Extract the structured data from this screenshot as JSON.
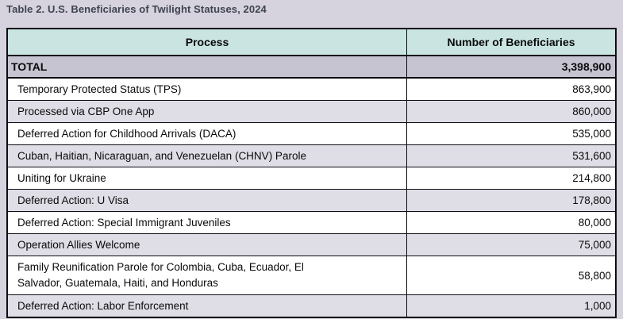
{
  "title": "Table 2. U.S. Beneficiaries of Twilight Statuses, 2024",
  "theme": {
    "page-bg": "#d6d3de",
    "header-bg": "#c9e4e1",
    "total-row-bg": "#c7c4d2",
    "alt-row-bg": "#dfdde6",
    "row-bg": "#ffffff",
    "border-color": "#0d0d12",
    "title-color": "#3e4350",
    "text-color": "#0a0a0a"
  },
  "table": {
    "columns": [
      "Process",
      "Number of Beneficiaries"
    ],
    "total_row": {
      "process": "TOTAL",
      "beneficiaries": "3,398,900"
    },
    "rows": [
      {
        "process": "Temporary Protected Status (TPS)",
        "beneficiaries": "863,900"
      },
      {
        "process": "Processed via CBP One App",
        "beneficiaries": "860,000"
      },
      {
        "process": "Deferred Action for Childhood Arrivals (DACA)",
        "beneficiaries": "535,000"
      },
      {
        "process": "Cuban, Haitian, Nicaraguan, and Venezuelan (CHNV) Parole",
        "beneficiaries": "531,600"
      },
      {
        "process": "Uniting for Ukraine",
        "beneficiaries": "214,800"
      },
      {
        "process": "Deferred Action: U Visa",
        "beneficiaries": "178,800"
      },
      {
        "process": "Deferred Action: Special Immigrant Juveniles",
        "beneficiaries": "80,000"
      },
      {
        "process": "Operation Allies Welcome",
        "beneficiaries": "75,000"
      },
      {
        "process": "Family Reunification Parole for Colombia, Cuba, Ecuador, El Salvador, Guatemala, Haiti, and Honduras",
        "beneficiaries": "58,800"
      },
      {
        "process": "Deferred Action: Labor Enforcement",
        "beneficiaries": "1,000"
      }
    ]
  }
}
